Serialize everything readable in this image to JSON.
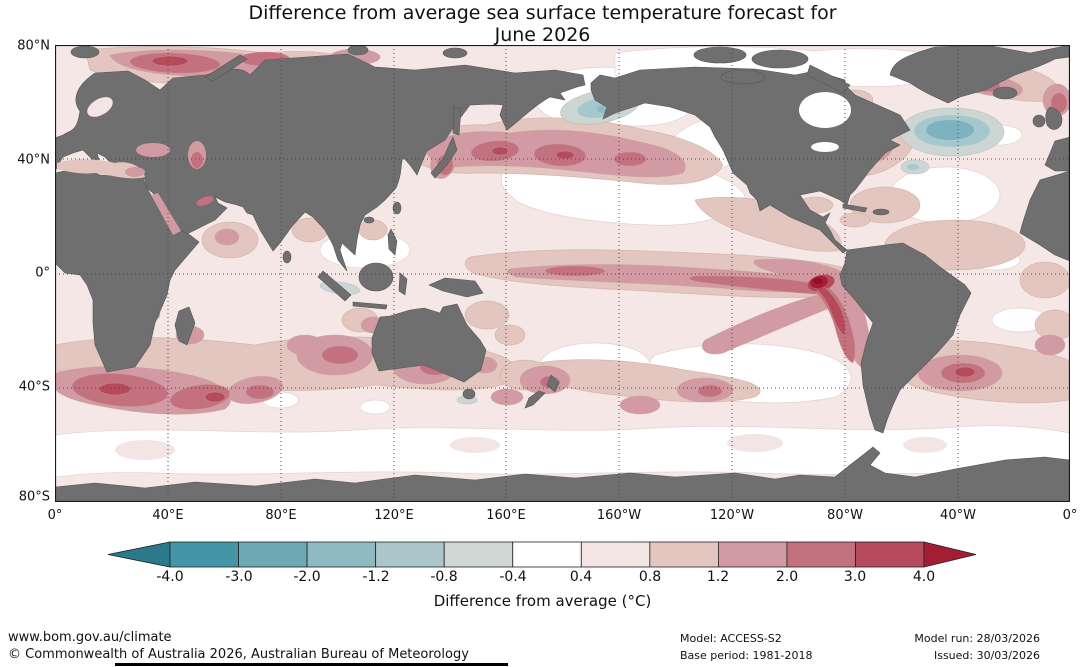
{
  "title": {
    "line1": "Difference from average sea surface temperature forecast for",
    "line2": "June 2026"
  },
  "map": {
    "lat_labels": [
      "80°N",
      "40°N",
      "0°",
      "40°S",
      "80°S"
    ],
    "lon_labels": [
      "0°",
      "40°E",
      "80°E",
      "120°E",
      "160°E",
      "160°W",
      "120°W",
      "80°W",
      "40°W",
      "0°"
    ]
  },
  "colorbar": {
    "caption": "Difference from average (°C)",
    "tick_labels": [
      "-4.0",
      "-3.0",
      "-2.0",
      "-1.2",
      "-0.8",
      "-0.4",
      "0.4",
      "0.8",
      "1.2",
      "2.0",
      "3.0",
      "4.0"
    ],
    "segment_colors": [
      "#4496a7",
      "#6ca9b4",
      "#90bac2",
      "#abc6ca",
      "#cfd6d3",
      "#ffffff",
      "#f3e5e3",
      "#e3c6bf",
      "#d29aa2",
      "#c3717f",
      "#b54a5c"
    ],
    "left_arrow_color": "#2a7a8c",
    "right_arrow_color": "#a51d33"
  },
  "footer": {
    "url": "www.bom.gov.au/climate",
    "copyright": "© Commonwealth of Australia 2026, Australian Bureau of Meteorology",
    "model": "Model: ACCESS-S2",
    "base_period": "Base period: 1981-2018",
    "model_run": "Model run: 28/03/2026",
    "issued": "Issued: 30/03/2026"
  },
  "palette": {
    "land": "#6f6f6f",
    "grid": "#4a4a4a",
    "base": "#f4e7e5",
    "p04": "#f3e5e3",
    "p08": "#e3c6bf",
    "p12": "#d29aa2",
    "p20": "#c3717f",
    "p30": "#b54a5c",
    "p40": "#a51d33",
    "p40deep": "#8f1127",
    "n04": "#ced6d3",
    "n08": "#a5c8ce",
    "n12": "#8fb9c6",
    "cool_deep": "#7fb2bf",
    "cb_left_arrow": "#2a7a8c",
    "cb_right_arrow": "#a51d33"
  },
  "chart_data": {
    "type": "heatmap",
    "title": "Difference from average sea surface temperature forecast for June 2026",
    "projection": "equirectangular world map, Pacific-centered (0°E left edge to 0° right edge)",
    "x_axis": {
      "label": "longitude",
      "ticks": [
        "0°",
        "40°E",
        "80°E",
        "120°E",
        "160°E",
        "160°W",
        "120°W",
        "80°W",
        "40°W",
        "0°"
      ]
    },
    "y_axis": {
      "label": "latitude",
      "ticks": [
        "80°N",
        "40°N",
        "0°",
        "40°S",
        "80°S"
      ]
    },
    "grid": "dotted graticule every 40 degrees",
    "units": "°C difference from 1981-2018 average",
    "colorbar_label": "Difference from average (°C)",
    "contour_levels": [
      -4.0,
      -3.0,
      -2.0,
      -1.2,
      -0.8,
      -0.4,
      0.4,
      0.8,
      1.2,
      2.0,
      3.0,
      4.0
    ],
    "colorbar_extends_both_ends": true,
    "land_color_note": "continents masked in solid gray",
    "notable_features": [
      "Strong positive anomaly exceeding +4°C in a small core off the Peru/Ecuador coast (El Niño-like pattern)",
      "Elongated +2 to +3°C warm tongue along the equatorial Pacific from ~160°E to the South American coast",
      "+2 to +3°C marine-heatwave band across the North Pacific near 40°N east of Japan",
      "+2 to +4°C warm anomalies in the Barents Sea and Arctic seas north of Scandinavia/Russia",
      "+3 to +4°C coastal warm patch along southeast Greenland",
      "Broad +1.2 to +3°C warm belt across the Southern Ocean near 40°S, strongest south of Africa and southwest of Australia and east of Argentina",
      "Negative anomaly (-0.8 to -2°C) patch in the North Atlantic south of Greenland",
      "Small negative anomaly (-0.8 to -1.2°C) patch in the Bering Sea",
      "Most remaining ocean between +0.4 and +1.2°C; near-zero (white) zones in central North Pacific, southeast Pacific and Southern Ocean near 60°S"
    ]
  }
}
